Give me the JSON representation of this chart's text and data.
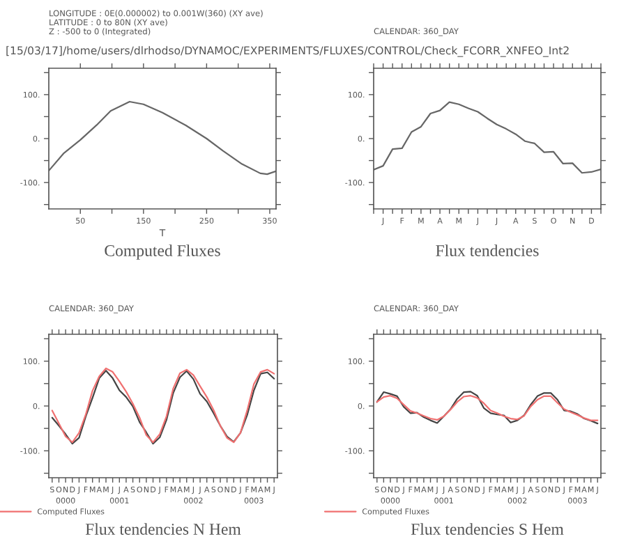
{
  "chart_data": [
    {
      "type": "line",
      "title": "Computed Fluxes",
      "subtitle": "[15/03/17]/home/users/dlrhodso/DYNAMOC/EXPERIMENTS/FLUXES/CONTROL/Check_FCORR_XNFEO_Int2",
      "xlabel": "T",
      "annotations": [
        "LONGITUDE : 0E(0.000002) to 0.001W(360) (XY ave)",
        "LATITUDE : 0 to 80N (XY ave)",
        "Z : -500 to 0 (Integrated)"
      ],
      "x": [
        0,
        24,
        50,
        76,
        98,
        128,
        150,
        180,
        217,
        250,
        276,
        306,
        335,
        346,
        360
      ],
      "series": [
        {
          "color": "#666666",
          "values": [
            -73,
            -33,
            -3,
            31,
            63,
            84,
            78,
            59,
            30,
            0,
            -28,
            -58,
            -79,
            -81,
            -74
          ]
        }
      ],
      "xlim": [
        0,
        360
      ],
      "xticks": [
        50,
        {
          "value": 100,
          "label": null
        },
        150,
        {
          "value": 200,
          "label": null
        },
        250,
        {
          "value": 300,
          "label": null
        },
        350
      ],
      "ylim": [
        -160,
        160
      ],
      "yticks": [
        {
          "value": -150,
          "label": null
        },
        {
          "value": -100,
          "label": "-100."
        },
        {
          "value": -50,
          "label": null
        },
        {
          "value": 0,
          "label": "0."
        },
        {
          "value": 50,
          "label": null
        },
        {
          "value": 100,
          "label": "100."
        },
        {
          "value": 150,
          "label": null
        }
      ]
    },
    {
      "type": "line",
      "title": "Flux tendencies",
      "annotations": [
        "CALENDAR: 360_DAY"
      ],
      "categories": [
        null,
        "J",
        null,
        "F",
        null,
        "M",
        null,
        "A",
        null,
        "M",
        null,
        "J",
        null,
        "J",
        null,
        "A",
        null,
        "S",
        null,
        "O",
        null,
        "N",
        null,
        "D",
        null
      ],
      "series": [
        {
          "color": "#666666",
          "values": [
            -71,
            -62,
            -24,
            -22,
            15,
            27,
            57,
            64,
            83,
            78,
            69,
            61,
            46,
            32,
            22,
            10,
            -6,
            -11,
            -31,
            -30,
            -57,
            -56,
            -78,
            -76,
            -70
          ]
        }
      ],
      "ylim": [
        -160,
        160
      ],
      "yticks": [
        {
          "value": -150,
          "label": null
        },
        {
          "value": -100,
          "label": "-100."
        },
        {
          "value": -50,
          "label": null
        },
        {
          "value": 0,
          "label": "0."
        },
        {
          "value": 50,
          "label": null
        },
        {
          "value": 100,
          "label": "100."
        },
        {
          "value": 150,
          "label": null
        }
      ]
    },
    {
      "type": "line",
      "title": "Flux tendencies N Hem",
      "annotations": [
        "CALENDAR: 360_DAY"
      ],
      "legend": "bottom left",
      "categories": [
        "S",
        "O",
        "N\n0000",
        "D",
        "J",
        "F",
        "M",
        "A",
        "M",
        "J",
        "J\n0001",
        "A",
        "S",
        "O",
        "N",
        "D",
        "J",
        "F",
        "M",
        "A",
        "M",
        "J\n0002",
        "J",
        "A",
        "S",
        "O",
        "N",
        "D",
        "J",
        "F",
        "M\n0003",
        "A",
        "M",
        "J"
      ],
      "series": [
        {
          "color": "#444444",
          "values": [
            -26,
            -44,
            -63,
            -84,
            -71,
            -23,
            18,
            62,
            79,
            62,
            35,
            20,
            -1,
            -36,
            -59,
            -84,
            -70,
            -31,
            29,
            64,
            78,
            60,
            27,
            10,
            -16,
            -44,
            -68,
            -80,
            -60,
            -20,
            35,
            72,
            75,
            61
          ]
        },
        {
          "name": "Computed Fluxes",
          "color": "#f07070",
          "values": [
            -10,
            -39,
            -68,
            -81,
            -60,
            -19,
            34,
            66,
            84,
            76,
            55,
            32,
            5,
            -26,
            -65,
            -81,
            -63,
            -23,
            39,
            73,
            81,
            69,
            44,
            20,
            -9,
            -44,
            -71,
            -81,
            -60,
            -10,
            49,
            76,
            81,
            72
          ]
        }
      ],
      "ylim": [
        -160,
        160
      ],
      "yticks": [
        {
          "value": -150,
          "label": null
        },
        {
          "value": -100,
          "label": "-100."
        },
        {
          "value": -50,
          "label": null
        },
        {
          "value": 0,
          "label": "0."
        },
        {
          "value": 50,
          "label": null
        },
        {
          "value": 100,
          "label": "100."
        },
        {
          "value": 150,
          "label": null
        }
      ]
    },
    {
      "type": "line",
      "title": "Flux tendencies S Hem",
      "annotations": [
        "CALENDAR: 360_DAY"
      ],
      "legend": "bottom left",
      "categories": [
        "S",
        "O",
        "N\n0000",
        "D",
        "J",
        "F",
        "M",
        "A",
        "M",
        "J",
        "J\n0001",
        "A",
        "S",
        "O",
        "N",
        "D",
        "J",
        "F",
        "M",
        "A",
        "M",
        "J\n0002",
        "J",
        "A",
        "S",
        "O",
        "N",
        "D",
        "J",
        "F",
        "M\n0003",
        "A",
        "M",
        "J"
      ],
      "series": [
        {
          "color": "#444444",
          "values": [
            9,
            31,
            27,
            22,
            -2,
            -16,
            -15,
            -25,
            -32,
            -38,
            -23,
            -7,
            16,
            31,
            32,
            23,
            -5,
            -16,
            -19,
            -21,
            -37,
            -32,
            -21,
            3,
            22,
            29,
            29,
            14,
            -10,
            -12,
            -18,
            -28,
            -33,
            -39
          ]
        },
        {
          "name": "Computed Fluxes",
          "color": "#f07070",
          "values": [
            9,
            20,
            23,
            17,
            3,
            -11,
            -16,
            -22,
            -28,
            -31,
            -23,
            -8,
            9,
            21,
            23,
            18,
            6,
            -10,
            -16,
            -23,
            -28,
            -30,
            -22,
            -1,
            14,
            22,
            22,
            7,
            -7,
            -14,
            -20,
            -27,
            -32,
            -32
          ]
        }
      ],
      "ylim": [
        -160,
        160
      ],
      "yticks": [
        {
          "value": -150,
          "label": null
        },
        {
          "value": -100,
          "label": "-100."
        },
        {
          "value": -50,
          "label": null
        },
        {
          "value": 0,
          "label": "0."
        },
        {
          "value": 50,
          "label": null
        },
        {
          "value": 100,
          "label": "100."
        },
        {
          "value": 150,
          "label": null
        }
      ]
    }
  ]
}
